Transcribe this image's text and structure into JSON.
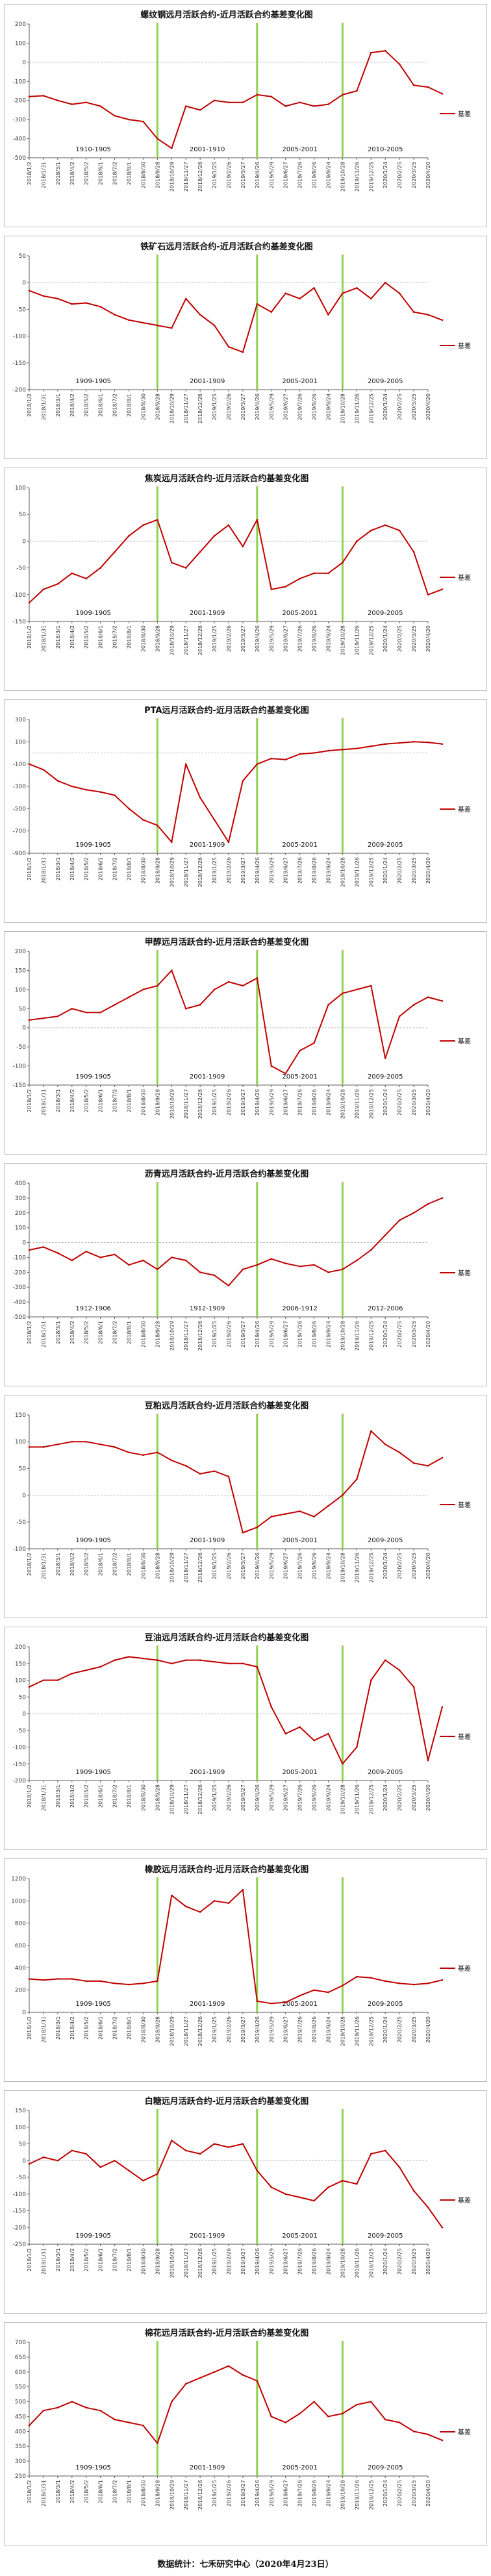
{
  "colors": {
    "series": "#c00000",
    "period_marker": "#92d050",
    "zero_line": "#bfbfbf",
    "axis": "#595959"
  },
  "source_note": "数据统计：七禾研究中心（2020年4月23日）",
  "x_ticks": [
    "2018/1/2",
    "2018/1/31",
    "2018/3/1",
    "2018/4/2",
    "2018/5/2",
    "2018/6/1",
    "2018/7/2",
    "2018/8/1",
    "2018/8/30",
    "2018/9/28",
    "2018/10/29",
    "2018/11/27",
    "2018/12/26",
    "2019/1/25",
    "2019/2/26",
    "2019/3/27",
    "2019/4/26",
    "2019/5/29",
    "2019/6/27",
    "2019/7/26",
    "2019/8/26",
    "2019/9/24",
    "2019/10/28",
    "2019/11/26",
    "2019/12/25",
    "2020/1/24",
    "2020/2/25",
    "2020/3/25",
    "2020/4/20"
  ],
  "chart_data": [
    {
      "type": "line",
      "title": "螺纹钢远月活跃合约-近月活跃合约基差变化图",
      "ylim": [
        -500,
        200
      ],
      "yticks": [
        200,
        100,
        0,
        -100,
        -200,
        -300,
        -400,
        -500
      ],
      "series": [
        {
          "name": "基差",
          "values": [
            -180,
            -175,
            -200,
            -220,
            -210,
            -230,
            -280,
            -300,
            -310,
            -400,
            -450,
            -230,
            -250,
            -200,
            -210,
            -210,
            -170,
            -180,
            -230,
            -210,
            -230,
            -220,
            -170,
            -150,
            50,
            60,
            -10,
            -120,
            -130,
            -165
          ]
        }
      ],
      "contract_labels": [
        "1910-1905",
        "2001-1910",
        "2005-2001",
        "2010-2005"
      ],
      "switch_index": [
        9,
        16,
        22
      ]
    },
    {
      "type": "line",
      "title": "铁矿石远月活跃合约-近月活跃合约基差变化图",
      "ylim": [
        -200,
        50
      ],
      "yticks": [
        50,
        0,
        -50,
        -100,
        -150,
        -200
      ],
      "series": [
        {
          "name": "基差",
          "values": [
            -15,
            -25,
            -30,
            -40,
            -38,
            -45,
            -60,
            -70,
            -75,
            -80,
            -85,
            -30,
            -60,
            -80,
            -120,
            -130,
            -40,
            -55,
            -20,
            -30,
            -10,
            -60,
            -20,
            -10,
            -30,
            0,
            -20,
            -55,
            -60,
            -70
          ]
        }
      ],
      "contract_labels": [
        "1909-1905",
        "2001-1909",
        "2005-2001",
        "2009-2005"
      ],
      "switch_index": [
        9,
        16,
        22
      ]
    },
    {
      "type": "line",
      "title": "焦炭远月活跃合约-近月活跃合约基差变化图",
      "ylim": [
        -150,
        100
      ],
      "yticks": [
        100,
        50,
        0,
        -50,
        -100,
        -150
      ],
      "series": [
        {
          "name": "基差",
          "values": [
            -115,
            -90,
            -80,
            -60,
            -70,
            -50,
            -20,
            10,
            30,
            40,
            -40,
            -50,
            -20,
            10,
            30,
            -10,
            40,
            -90,
            -85,
            -70,
            -60,
            -60,
            -40,
            0,
            20,
            30,
            20,
            -20,
            -100,
            -90
          ]
        }
      ],
      "contract_labels": [
        "1909-1905",
        "2001-1909",
        "2005-2001",
        "2009-2005"
      ],
      "switch_index": [
        9,
        16,
        22
      ]
    },
    {
      "type": "line",
      "title": "PTA远月活跃合约-近月活跃合约基差变化图",
      "ylim": [
        -900,
        300
      ],
      "yticks": [
        300,
        100,
        -100,
        -300,
        -500,
        -700,
        -900
      ],
      "series": [
        {
          "name": "基差",
          "values": [
            -100,
            -150,
            -250,
            -300,
            -330,
            -350,
            -380,
            -500,
            -600,
            -650,
            -800,
            -100,
            -400,
            -600,
            -800,
            -250,
            -100,
            -50,
            -60,
            -10,
            0,
            20,
            30,
            40,
            60,
            80,
            90,
            100,
            95,
            80
          ]
        }
      ],
      "contract_labels": [
        "1909-1905",
        "2001-1909",
        "2005-2001",
        "2009-2005"
      ],
      "switch_index": [
        9,
        16,
        22
      ]
    },
    {
      "type": "line",
      "title": "甲醇远月活跃合约-近月活跃合约基差变化图",
      "ylim": [
        -150,
        200
      ],
      "yticks": [
        200,
        150,
        100,
        50,
        0,
        -50,
        -100,
        -150
      ],
      "series": [
        {
          "name": "基差",
          "values": [
            20,
            25,
            30,
            50,
            40,
            40,
            60,
            80,
            100,
            110,
            150,
            50,
            60,
            100,
            120,
            110,
            130,
            -100,
            -120,
            -60,
            -40,
            60,
            90,
            100,
            110,
            -80,
            30,
            60,
            80,
            70
          ]
        }
      ],
      "contract_labels": [
        "1909-1905",
        "2001-1909",
        "2005-2001",
        "2009-2005"
      ],
      "switch_index": [
        9,
        16,
        22
      ]
    },
    {
      "type": "line",
      "title": "沥青远月活跃合约-近月活跃合约基差变化图",
      "ylim": [
        -500,
        400
      ],
      "yticks": [
        400,
        300,
        200,
        100,
        0,
        -100,
        -200,
        -300,
        -400,
        -500
      ],
      "series": [
        {
          "name": "基差",
          "values": [
            -50,
            -30,
            -70,
            -120,
            -60,
            -100,
            -80,
            -150,
            -120,
            -180,
            -100,
            -120,
            -200,
            -220,
            -290,
            -180,
            -150,
            -110,
            -140,
            -160,
            -150,
            -200,
            -180,
            -120,
            -50,
            50,
            150,
            200,
            260,
            300
          ]
        }
      ],
      "contract_labels": [
        "1912-1906",
        "1912-1909",
        "2006-1912",
        "2012-2006"
      ],
      "switch_index": [
        9,
        16,
        22
      ]
    },
    {
      "type": "line",
      "title": "豆粕远月活跃合约-近月活跃合约基差变化图",
      "ylim": [
        -100,
        150
      ],
      "yticks": [
        150,
        100,
        50,
        0,
        -50,
        -100
      ],
      "series": [
        {
          "name": "基差",
          "values": [
            90,
            90,
            95,
            100,
            100,
            95,
            90,
            80,
            75,
            80,
            65,
            55,
            40,
            45,
            35,
            -70,
            -60,
            -40,
            -35,
            -30,
            -40,
            -20,
            0,
            30,
            120,
            95,
            80,
            60,
            55,
            70
          ]
        }
      ],
      "contract_labels": [
        "1909-1905",
        "2001-1909",
        "2005-2001",
        "2009-2005"
      ],
      "switch_index": [
        9,
        16,
        22
      ]
    },
    {
      "type": "line",
      "title": "豆油远月活跃合约-近月活跃合约基差变化图",
      "ylim": [
        -200,
        200
      ],
      "yticks": [
        200,
        150,
        100,
        50,
        0,
        -50,
        -100,
        -150,
        -200
      ],
      "series": [
        {
          "name": "基差",
          "values": [
            80,
            100,
            100,
            120,
            130,
            140,
            160,
            170,
            165,
            160,
            150,
            160,
            160,
            155,
            150,
            150,
            140,
            20,
            -60,
            -40,
            -80,
            -60,
            -150,
            -100,
            100,
            160,
            130,
            80,
            -140,
            20
          ]
        }
      ],
      "contract_labels": [
        "1909-1905",
        "2001-1909",
        "2005-2001",
        "2009-2005"
      ],
      "switch_index": [
        9,
        16,
        22
      ]
    },
    {
      "type": "line",
      "title": "橡胶远月活跃合约-近月活跃合约基差变化图",
      "ylim": [
        0,
        1200
      ],
      "yticks": [
        1200,
        1000,
        800,
        600,
        400,
        200,
        0
      ],
      "series": [
        {
          "name": "基差",
          "values": [
            300,
            290,
            300,
            300,
            280,
            280,
            260,
            250,
            260,
            280,
            1050,
            950,
            900,
            1000,
            980,
            1100,
            100,
            80,
            90,
            150,
            200,
            180,
            240,
            320,
            310,
            280,
            260,
            250,
            260,
            290
          ]
        }
      ],
      "contract_labels": [
        "1909-1905",
        "2001-1909",
        "2005-2001",
        "2009-2005"
      ],
      "switch_index": [
        9,
        16,
        22
      ]
    },
    {
      "type": "line",
      "title": "白糖远月活跃合约-近月活跃合约基差变化图",
      "ylim": [
        -250,
        150
      ],
      "yticks": [
        150,
        100,
        50,
        0,
        -50,
        -100,
        -150,
        -200,
        -250
      ],
      "series": [
        {
          "name": "基差",
          "values": [
            -10,
            10,
            0,
            30,
            20,
            -20,
            0,
            -30,
            -60,
            -40,
            60,
            30,
            20,
            50,
            40,
            50,
            -30,
            -80,
            -100,
            -110,
            -120,
            -80,
            -60,
            -70,
            20,
            30,
            -20,
            -90,
            -140,
            -200
          ]
        }
      ],
      "contract_labels": [
        "1909-1905",
        "2001-1909",
        "2005-2001",
        "2009-2005"
      ],
      "switch_index": [
        9,
        16,
        22
      ]
    },
    {
      "type": "line",
      "title": "棉花远月活跃合约-近月活跃合约基差变化图",
      "ylim": [
        250,
        700
      ],
      "yticks": [
        700,
        650,
        600,
        550,
        500,
        450,
        400,
        350,
        300,
        250
      ],
      "series": [
        {
          "name": "基差",
          "values": [
            420,
            470,
            480,
            500,
            480,
            470,
            440,
            430,
            420,
            360,
            500,
            560,
            580,
            600,
            620,
            590,
            570,
            450,
            430,
            460,
            500,
            450,
            460,
            490,
            500,
            440,
            430,
            400,
            390,
            370
          ]
        }
      ],
      "contract_labels": [
        "1909-1905",
        "2001-1909",
        "2005-2001",
        "2009-2005"
      ],
      "switch_index": [
        9,
        16,
        22
      ]
    }
  ]
}
